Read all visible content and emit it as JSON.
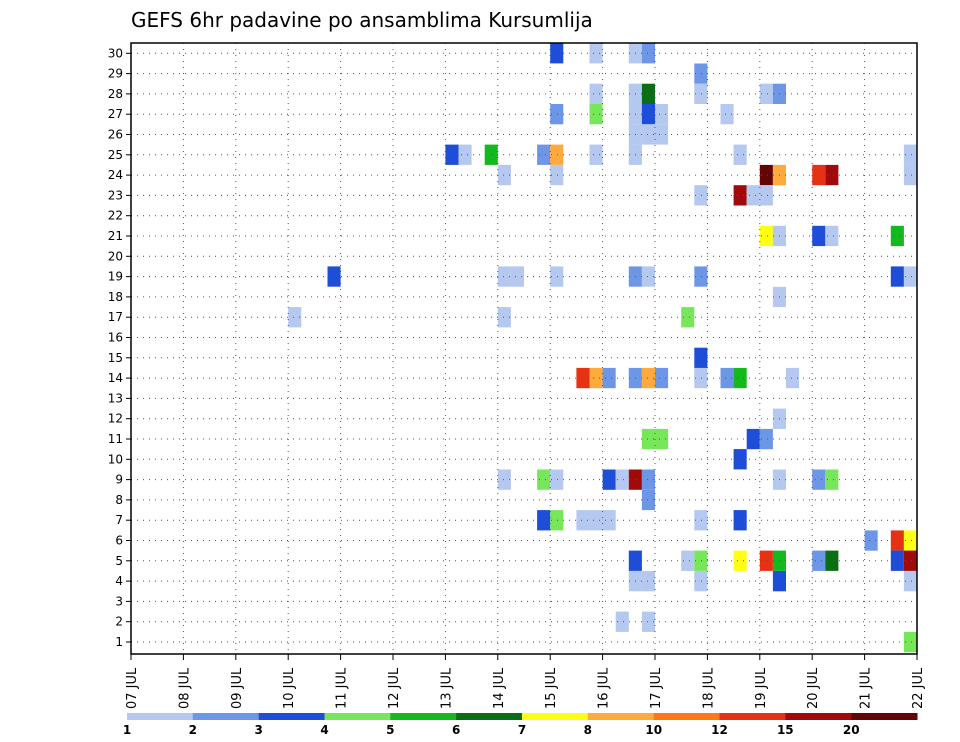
{
  "chart_data": {
    "type": "heatmap",
    "title": "GEFS 6hr padavine po ansamblima Kursumlija",
    "x_tick_labels": [
      "07 JUL",
      "08 JUL",
      "09 JUL",
      "10 JUL",
      "11 JUL",
      "12 JUL",
      "13 JUL",
      "14 JUL",
      "15 JUL",
      "16 JUL",
      "17 JUL",
      "18 JUL",
      "19 JUL",
      "20 JUL",
      "21 JUL",
      "22 JUL"
    ],
    "x_unit": "6-hour step from 07 JUL 00Z",
    "xlim": [
      0,
      60
    ],
    "y_tick_labels": [
      "1",
      "2",
      "3",
      "4",
      "5",
      "6",
      "7",
      "8",
      "9",
      "10",
      "11",
      "12",
      "13",
      "14",
      "15",
      "16",
      "17",
      "18",
      "19",
      "20",
      "21",
      "22",
      "23",
      "24",
      "25",
      "26",
      "27",
      "28",
      "29",
      "30"
    ],
    "ylim": [
      0,
      30
    ],
    "grid": true,
    "colorbar": {
      "ticks": [
        "1",
        "2",
        "3",
        "4",
        "5",
        "6",
        "7",
        "8",
        "10",
        "12",
        "15",
        "20"
      ],
      "colors": [
        "#b4c8f0",
        "#6e96e6",
        "#1e4ed8",
        "#78e65a",
        "#14b91e",
        "#0a6e14",
        "#ffff14",
        "#ffaa3c",
        "#ff7814",
        "#e63214",
        "#a00a0a",
        "#640505"
      ],
      "placement": "bottom"
    },
    "cells": [
      {
        "y": 30,
        "x": [
          32
        ],
        "l": 3
      },
      {
        "y": 30,
        "x": [
          35
        ],
        "l": 1
      },
      {
        "y": 30,
        "x": [
          38
        ],
        "l": 1
      },
      {
        "y": 30,
        "x": [
          39
        ],
        "l": 2
      },
      {
        "y": 29,
        "x": [
          43
        ],
        "l": 2
      },
      {
        "y": 28,
        "x": [
          35
        ],
        "l": 1
      },
      {
        "y": 28,
        "x": [
          38
        ],
        "l": 1
      },
      {
        "y": 28,
        "x": [
          39
        ],
        "l": 6
      },
      {
        "y": 28,
        "x": [
          43
        ],
        "l": 1
      },
      {
        "y": 28,
        "x": [
          48
        ],
        "l": 1
      },
      {
        "y": 28,
        "x": [
          49
        ],
        "l": 2
      },
      {
        "y": 27,
        "x": [
          32
        ],
        "l": 2
      },
      {
        "y": 27,
        "x": [
          35
        ],
        "l": 4
      },
      {
        "y": 27,
        "x": [
          38
        ],
        "l": 1
      },
      {
        "y": 27,
        "x": [
          39
        ],
        "l": 3
      },
      {
        "y": 27,
        "x": [
          40
        ],
        "l": 1
      },
      {
        "y": 27,
        "x": [
          45
        ],
        "l": 1
      },
      {
        "y": 26,
        "x": [
          38
        ],
        "l": 1
      },
      {
        "y": 26,
        "x": [
          39
        ],
        "l": 1
      },
      {
        "y": 26,
        "x": [
          40
        ],
        "l": 1
      },
      {
        "y": 25,
        "x": [
          24
        ],
        "l": 3
      },
      {
        "y": 25,
        "x": [
          25
        ],
        "l": 1
      },
      {
        "y": 25,
        "x": [
          27
        ],
        "l": 5
      },
      {
        "y": 25,
        "x": [
          31
        ],
        "l": 2
      },
      {
        "y": 25,
        "x": [
          32
        ],
        "l": 8
      },
      {
        "y": 25,
        "x": [
          35
        ],
        "l": 1
      },
      {
        "y": 25,
        "x": [
          38
        ],
        "l": 1
      },
      {
        "y": 25,
        "x": [
          46
        ],
        "l": 1
      },
      {
        "y": 25,
        "x": [
          59
        ],
        "l": 1
      },
      {
        "y": 24,
        "x": [
          28
        ],
        "l": 1
      },
      {
        "y": 24,
        "x": [
          32
        ],
        "l": 1
      },
      {
        "y": 24,
        "x": [
          48
        ],
        "l": 12
      },
      {
        "y": 24,
        "x": [
          49
        ],
        "l": 8
      },
      {
        "y": 24,
        "x": [
          52
        ],
        "l": 10
      },
      {
        "y": 24,
        "x": [
          53
        ],
        "l": 11
      },
      {
        "y": 24,
        "x": [
          59
        ],
        "l": 1
      },
      {
        "y": 23,
        "x": [
          43
        ],
        "l": 1
      },
      {
        "y": 23,
        "x": [
          46
        ],
        "l": 11
      },
      {
        "y": 23,
        "x": [
          47
        ],
        "l": 1
      },
      {
        "y": 23,
        "x": [
          48
        ],
        "l": 1
      },
      {
        "y": 21,
        "x": [
          48
        ],
        "l": 7
      },
      {
        "y": 21,
        "x": [
          49
        ],
        "l": 1
      },
      {
        "y": 21,
        "x": [
          52
        ],
        "l": 3
      },
      {
        "y": 21,
        "x": [
          53
        ],
        "l": 1
      },
      {
        "y": 21,
        "x": [
          58
        ],
        "l": 5
      },
      {
        "y": 19,
        "x": [
          15
        ],
        "l": 3
      },
      {
        "y": 19,
        "x": [
          28
        ],
        "l": 1
      },
      {
        "y": 19,
        "x": [
          29
        ],
        "l": 1
      },
      {
        "y": 19,
        "x": [
          32
        ],
        "l": 1
      },
      {
        "y": 19,
        "x": [
          38
        ],
        "l": 2
      },
      {
        "y": 19,
        "x": [
          39
        ],
        "l": 1
      },
      {
        "y": 19,
        "x": [
          43
        ],
        "l": 2
      },
      {
        "y": 19,
        "x": [
          58
        ],
        "l": 3
      },
      {
        "y": 19,
        "x": [
          59
        ],
        "l": 1
      },
      {
        "y": 18,
        "x": [
          49
        ],
        "l": 1
      },
      {
        "y": 17,
        "x": [
          12
        ],
        "l": 1
      },
      {
        "y": 17,
        "x": [
          28
        ],
        "l": 1
      },
      {
        "y": 17,
        "x": [
          42
        ],
        "l": 4
      },
      {
        "y": 15,
        "x": [
          43
        ],
        "l": 3
      },
      {
        "y": 14,
        "x": [
          34
        ],
        "l": 10
      },
      {
        "y": 14,
        "x": [
          35
        ],
        "l": 8
      },
      {
        "y": 14,
        "x": [
          36
        ],
        "l": 2
      },
      {
        "y": 14,
        "x": [
          38
        ],
        "l": 2
      },
      {
        "y": 14,
        "x": [
          39
        ],
        "l": 8
      },
      {
        "y": 14,
        "x": [
          40
        ],
        "l": 2
      },
      {
        "y": 14,
        "x": [
          43
        ],
        "l": 1
      },
      {
        "y": 14,
        "x": [
          45
        ],
        "l": 2
      },
      {
        "y": 14,
        "x": [
          46
        ],
        "l": 5
      },
      {
        "y": 14,
        "x": [
          50
        ],
        "l": 1
      },
      {
        "y": 12,
        "x": [
          49
        ],
        "l": 1
      },
      {
        "y": 11,
        "x": [
          39
        ],
        "l": 4
      },
      {
        "y": 11,
        "x": [
          40
        ],
        "l": 4
      },
      {
        "y": 11,
        "x": [
          47
        ],
        "l": 3
      },
      {
        "y": 11,
        "x": [
          48
        ],
        "l": 2
      },
      {
        "y": 10,
        "x": [
          46
        ],
        "l": 3
      },
      {
        "y": 9,
        "x": [
          28
        ],
        "l": 1
      },
      {
        "y": 9,
        "x": [
          31
        ],
        "l": 4
      },
      {
        "y": 9,
        "x": [
          32
        ],
        "l": 1
      },
      {
        "y": 9,
        "x": [
          36
        ],
        "l": 3
      },
      {
        "y": 9,
        "x": [
          37
        ],
        "l": 1
      },
      {
        "y": 9,
        "x": [
          38
        ],
        "l": 11
      },
      {
        "y": 9,
        "x": [
          39
        ],
        "l": 2
      },
      {
        "y": 9,
        "x": [
          49
        ],
        "l": 1
      },
      {
        "y": 9,
        "x": [
          52
        ],
        "l": 2
      },
      {
        "y": 9,
        "x": [
          53
        ],
        "l": 4
      },
      {
        "y": 8,
        "x": [
          39
        ],
        "l": 2
      },
      {
        "y": 7,
        "x": [
          31
        ],
        "l": 3
      },
      {
        "y": 7,
        "x": [
          32
        ],
        "l": 4
      },
      {
        "y": 7,
        "x": [
          34
        ],
        "l": 1
      },
      {
        "y": 7,
        "x": [
          35
        ],
        "l": 1
      },
      {
        "y": 7,
        "x": [
          36
        ],
        "l": 1
      },
      {
        "y": 7,
        "x": [
          43
        ],
        "l": 1
      },
      {
        "y": 7,
        "x": [
          46
        ],
        "l": 3
      },
      {
        "y": 6,
        "x": [
          56
        ],
        "l": 2
      },
      {
        "y": 6,
        "x": [
          58
        ],
        "l": 10
      },
      {
        "y": 6,
        "x": [
          59
        ],
        "l": 7
      },
      {
        "y": 5,
        "x": [
          38
        ],
        "l": 3
      },
      {
        "y": 5,
        "x": [
          42
        ],
        "l": 1
      },
      {
        "y": 5,
        "x": [
          43
        ],
        "l": 4
      },
      {
        "y": 5,
        "x": [
          46
        ],
        "l": 7
      },
      {
        "y": 5,
        "x": [
          48
        ],
        "l": 10
      },
      {
        "y": 5,
        "x": [
          49
        ],
        "l": 5
      },
      {
        "y": 5,
        "x": [
          52
        ],
        "l": 2
      },
      {
        "y": 5,
        "x": [
          53
        ],
        "l": 6
      },
      {
        "y": 5,
        "x": [
          58
        ],
        "l": 3
      },
      {
        "y": 5,
        "x": [
          59
        ],
        "l": 11
      },
      {
        "y": 4,
        "x": [
          38
        ],
        "l": 1
      },
      {
        "y": 4,
        "x": [
          39
        ],
        "l": 1
      },
      {
        "y": 4,
        "x": [
          43
        ],
        "l": 1
      },
      {
        "y": 4,
        "x": [
          49
        ],
        "l": 3
      },
      {
        "y": 4,
        "x": [
          59
        ],
        "l": 1
      },
      {
        "y": 2,
        "x": [
          37
        ],
        "l": 1
      },
      {
        "y": 2,
        "x": [
          39
        ],
        "l": 1
      },
      {
        "y": 1,
        "x": [
          59
        ],
        "l": 4
      }
    ]
  }
}
